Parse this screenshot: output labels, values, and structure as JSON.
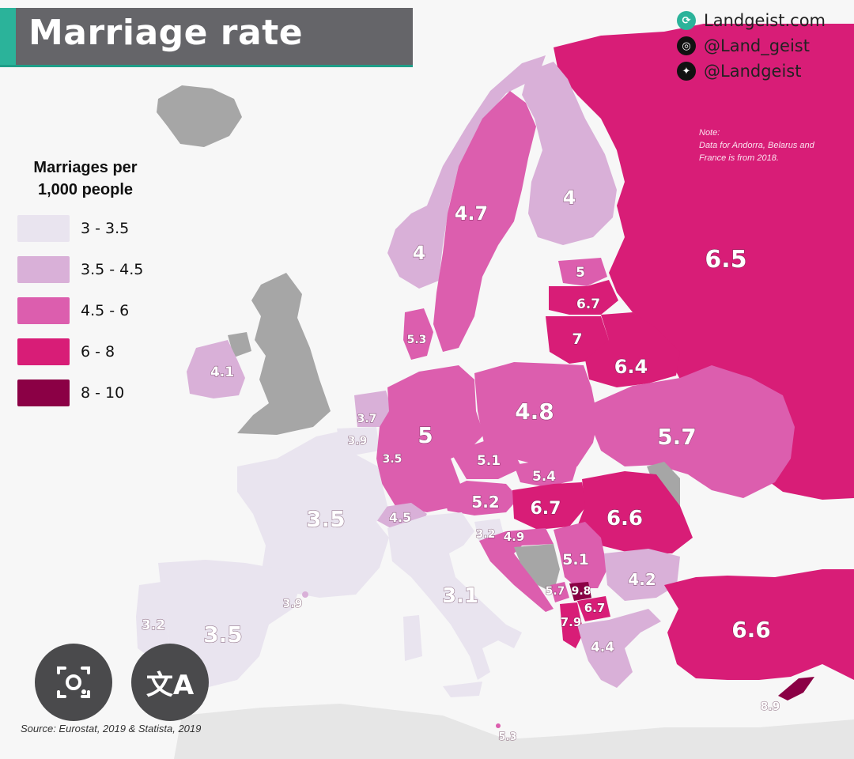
{
  "title": "Marriage rate",
  "social": {
    "website": "Landgeist.com",
    "instagram": "@Land_geist",
    "twitter": "@Landgeist"
  },
  "note": {
    "heading": "Note:",
    "text": "Data for Andorra, Belarus and France is from 2018."
  },
  "legend": {
    "title_line1": "Marriages per",
    "title_line2": "1,000 people",
    "items": [
      {
        "label": "3  - 3.5",
        "color": "#e9e4ef"
      },
      {
        "label": "3.5 - 4.5",
        "color": "#d9b0d8"
      },
      {
        "label": "4.5 -  6",
        "color": "#dc5eae"
      },
      {
        "label": "6  -  8",
        "color": "#d81d77"
      },
      {
        "label": "8  - 10",
        "color": "#8b0045"
      }
    ],
    "no_data_color": "#a6a6a6"
  },
  "source": "Source: Eurostat, 2019 & Statista, 2019",
  "buttons": {
    "lens_icon": "camera-lens-icon",
    "translate_icon": "translate-icon",
    "translate_glyph": "文A"
  },
  "values": {
    "russia": "6.5",
    "finland": "4",
    "sweden": "4.7",
    "norway": "4",
    "estonia": "5",
    "latvia": "6.7",
    "lithuania": "7",
    "belarus": "6.4",
    "denmark": "5.3",
    "ireland": "4.1",
    "netherlands": "3.7",
    "belgium": "3.9",
    "luxembourg": "3.5",
    "germany": "5",
    "poland": "4.8",
    "ukraine": "5.7",
    "czechia": "5.1",
    "slovakia": "5.4",
    "austria": "5.2",
    "hungary": "6.7",
    "romania": "6.6",
    "switzerland": "4.5",
    "slovenia": "3.2",
    "croatia": "4.9",
    "serbia": "5.1",
    "montenegro": "5.7",
    "kosovo": "9.8",
    "north_macedonia": "6.7",
    "albania": "7.9",
    "bulgaria": "4.2",
    "greece": "4.4",
    "turkey": "6.6",
    "cyprus": "8.9",
    "malta": "5.3",
    "france": "3.5",
    "italy": "3.1",
    "spain": "3.5",
    "portugal": "3.2",
    "andorra": "3.9"
  }
}
